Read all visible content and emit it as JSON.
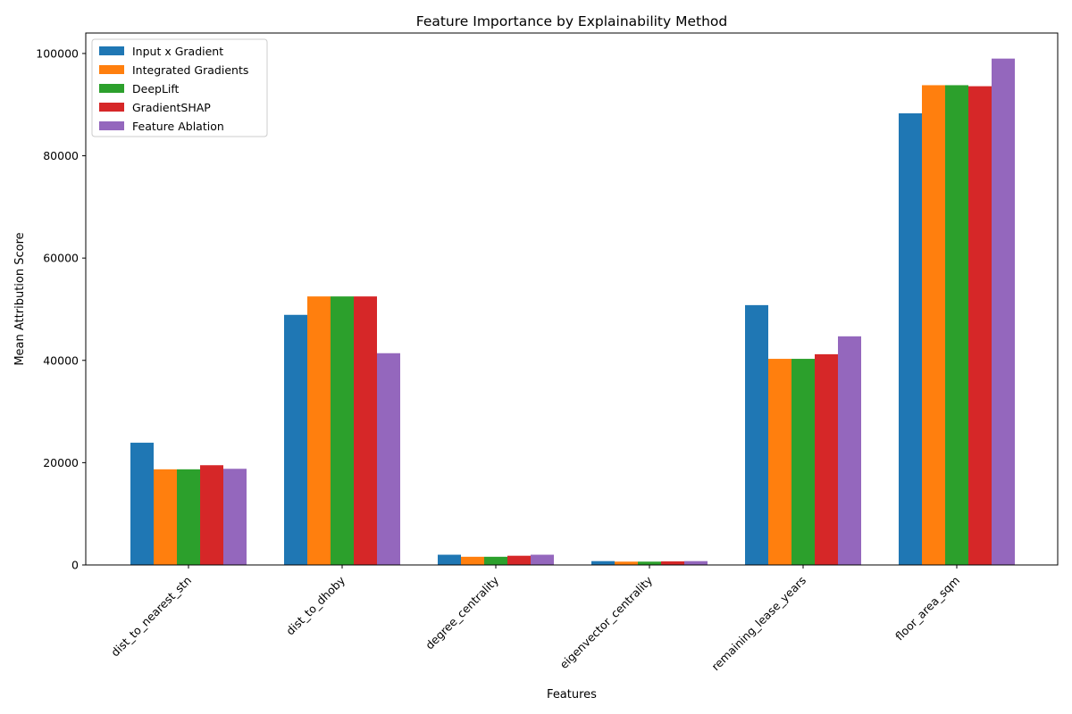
{
  "chart_data": {
    "type": "bar",
    "title": "Feature Importance by Explainability Method",
    "xlabel": "Features",
    "ylabel": "Mean Attribution Score",
    "categories": [
      "dist_to_nearest_stn",
      "dist_to_dhoby",
      "degree_centrality",
      "eigenvector_centrality",
      "remaining_lease_years",
      "floor_area_sqm"
    ],
    "ylim": [
      0,
      104000
    ],
    "yticks": [
      0,
      20000,
      40000,
      60000,
      80000,
      100000
    ],
    "grid": false,
    "legend_position": "top-left",
    "series": [
      {
        "name": "Input x Gradient",
        "color": "#1f77b4",
        "values": [
          23900,
          48900,
          2000,
          750,
          50800,
          88300
        ]
      },
      {
        "name": "Integrated Gradients",
        "color": "#ff7f0e",
        "values": [
          18700,
          52500,
          1600,
          650,
          40300,
          93800
        ]
      },
      {
        "name": "DeepLift",
        "color": "#2ca02c",
        "values": [
          18700,
          52500,
          1600,
          650,
          40300,
          93800
        ]
      },
      {
        "name": "GradientSHAP",
        "color": "#d62728",
        "values": [
          19500,
          52500,
          1800,
          700,
          41200,
          93600
        ]
      },
      {
        "name": "Feature Ablation",
        "color": "#9467bd",
        "values": [
          18800,
          41400,
          2000,
          750,
          44700,
          99000
        ]
      }
    ]
  }
}
